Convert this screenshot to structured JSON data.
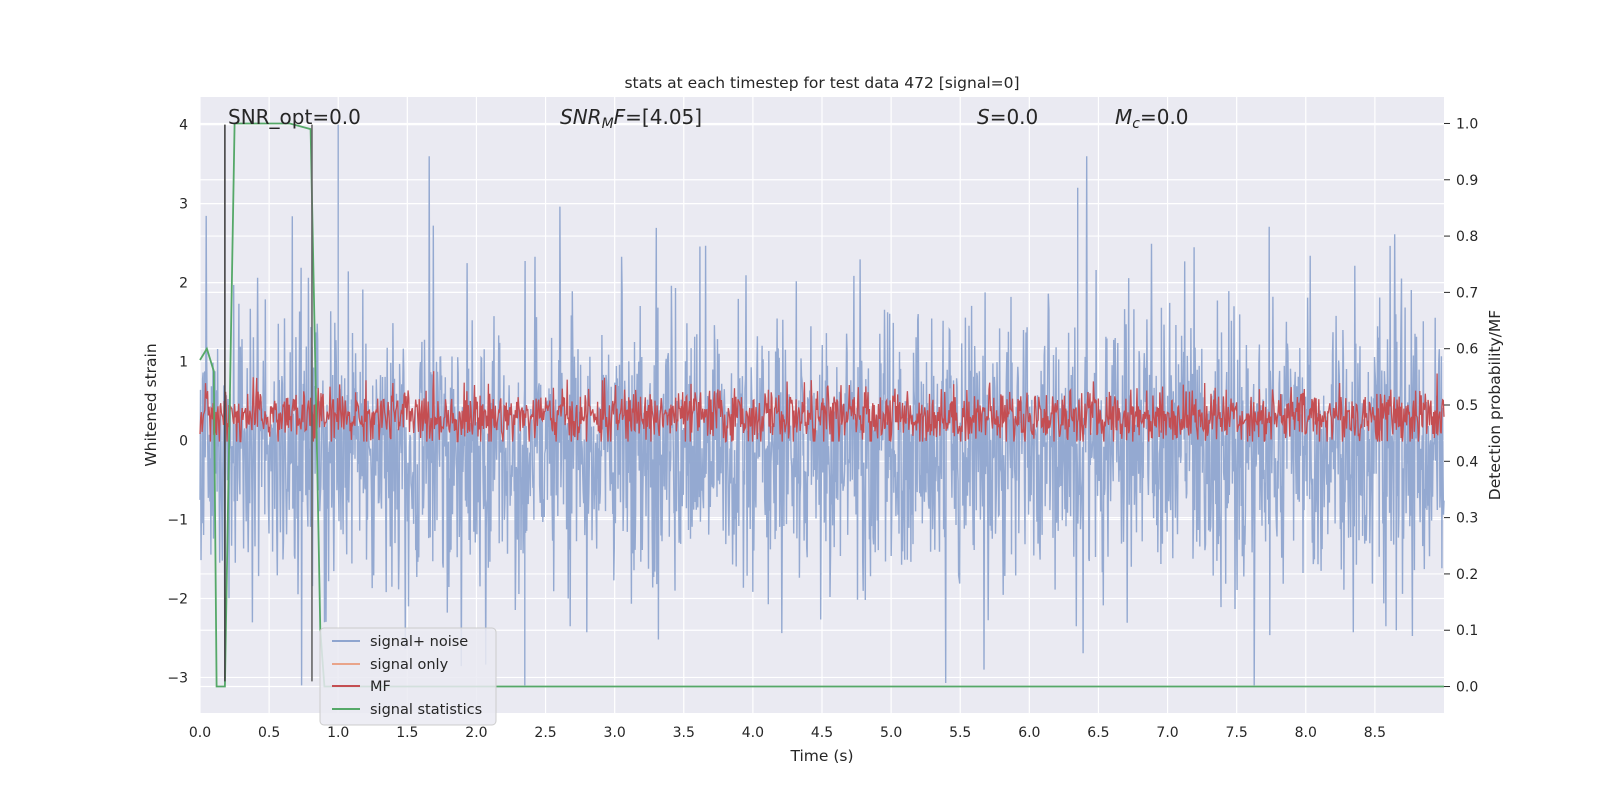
{
  "chart_data": {
    "type": "line",
    "title": "stats at each timestep for test data 472 [signal=0]",
    "xlabel": "Time (s)",
    "ylabel": "Whitened strain",
    "ylabel_right": "Detection probability/MF",
    "xlim": [
      0.0,
      9.0
    ],
    "ylim": [
      -3.45,
      4.35
    ],
    "ylim_right": [
      -0.047,
      1.047
    ],
    "xticks": [
      0.0,
      0.5,
      1.0,
      1.5,
      2.0,
      2.5,
      3.0,
      3.5,
      4.0,
      4.5,
      5.0,
      5.5,
      6.0,
      6.5,
      7.0,
      7.5,
      8.0,
      8.5
    ],
    "xtick_labels": [
      "0.0",
      "0.5",
      "1.0",
      "1.5",
      "2.0",
      "2.5",
      "3.0",
      "3.5",
      "4.0",
      "4.5",
      "5.0",
      "5.5",
      "6.0",
      "6.5",
      "7.0",
      "7.5",
      "8.0",
      "8.5"
    ],
    "yticks_left": [
      4,
      3,
      2,
      1,
      0,
      -1,
      -2,
      -3
    ],
    "ytick_labels_left": [
      "4",
      "3",
      "2",
      "1",
      "0",
      "−1",
      "−2",
      "−3"
    ],
    "yticks_right": [
      1.0,
      0.9,
      0.8,
      0.7,
      0.6,
      0.5,
      0.4,
      0.3,
      0.2,
      0.1,
      0.0
    ],
    "ytick_labels_right": [
      "1.0",
      "0.9",
      "0.8",
      "0.7",
      "0.6",
      "0.5",
      "0.4",
      "0.3",
      "0.2",
      "0.1",
      "0.0"
    ],
    "grid": true,
    "legend_placement": "lower-left",
    "annotations": {
      "snr_opt": "SNR_opt=0.0",
      "snr_mf_main": "SNR",
      "snr_mf_sub": "M",
      "snr_mf_rest": "F=[4.05]",
      "s_main": "S",
      "s_rest": "=0.0",
      "mc_main": "M",
      "mc_sub": "c",
      "mc_rest": "=0.0"
    },
    "series": [
      {
        "name": "signal+ noise",
        "color": "#8fa5cf",
        "axis": "left",
        "description_values": {
          "center": -0.1,
          "typical_amplitude": 1.0,
          "peak_max": 4.0,
          "peak_min": -3.1
        }
      },
      {
        "name": "signal only",
        "color": "#e9a48a",
        "axis": "left",
        "values": [
          0.0
        ]
      },
      {
        "name": "MF",
        "color": "#c44e52",
        "axis": "right",
        "description_values": {
          "center": 0.48,
          "low": 0.435,
          "high": 0.56
        }
      },
      {
        "name": "signal statistics",
        "color": "#55a868",
        "axis": "right",
        "x": [
          0.0,
          0.05,
          0.1,
          0.12,
          0.18,
          0.25,
          0.3,
          0.65,
          0.8,
          0.84,
          0.87,
          0.9,
          1.0,
          2.0,
          3.0,
          4.0,
          5.0,
          6.0,
          7.0,
          8.0,
          9.0
        ],
        "y": [
          0.58,
          0.6,
          0.56,
          0.0,
          0.0,
          1.0,
          1.0,
          1.0,
          0.99,
          0.5,
          0.1,
          0.0,
          0.0,
          0.0,
          0.0,
          0.0,
          0.0,
          0.0,
          0.0,
          0.0,
          0.0
        ]
      }
    ],
    "vlines": [
      {
        "x": 0.18,
        "ymin": -3.05,
        "ymax": 4.0,
        "color": "#444444"
      },
      {
        "x": 0.81,
        "ymin": -3.05,
        "ymax": 4.0,
        "color": "#666666"
      }
    ]
  }
}
